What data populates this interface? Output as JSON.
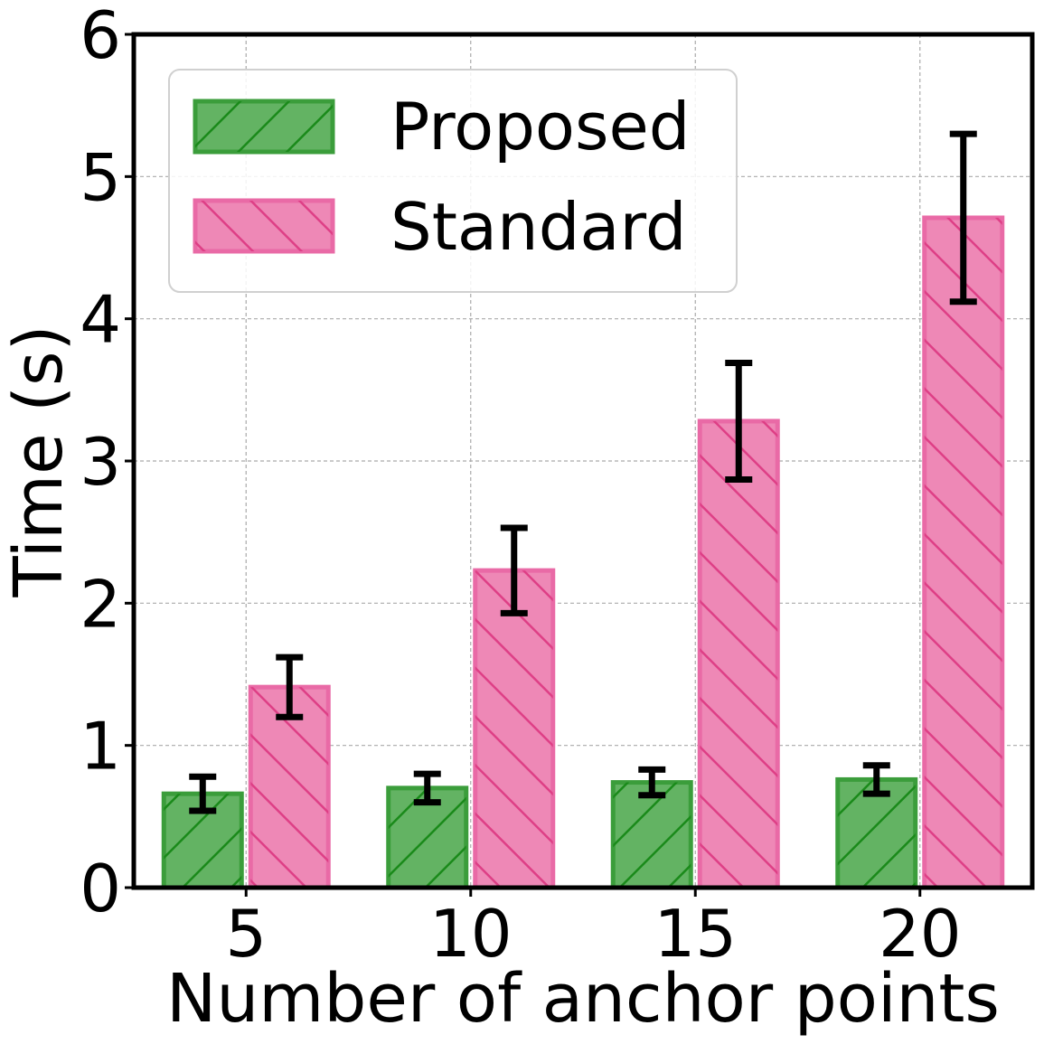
{
  "chart_data": {
    "type": "bar",
    "title": "",
    "xlabel": "Number of anchor points",
    "ylabel": "Time (s)",
    "categories": [
      "5",
      "10",
      "15",
      "20"
    ],
    "ylim": [
      0,
      6
    ],
    "yticks": [
      "0",
      "1",
      "2",
      "3",
      "4",
      "5",
      "6"
    ],
    "grid": true,
    "legend": "top-left",
    "series": [
      {
        "name": "Proposed",
        "values": [
          0.66,
          0.7,
          0.74,
          0.76
        ],
        "error": [
          0.12,
          0.1,
          0.09,
          0.1
        ],
        "color": "#2ca02c",
        "hatch": "forward-diagonal"
      },
      {
        "name": "Standard",
        "values": [
          1.41,
          2.23,
          3.28,
          4.71
        ],
        "error": [
          0.21,
          0.3,
          0.41,
          0.59
        ],
        "color": "#e7549a",
        "hatch": "back-diagonal"
      }
    ]
  }
}
